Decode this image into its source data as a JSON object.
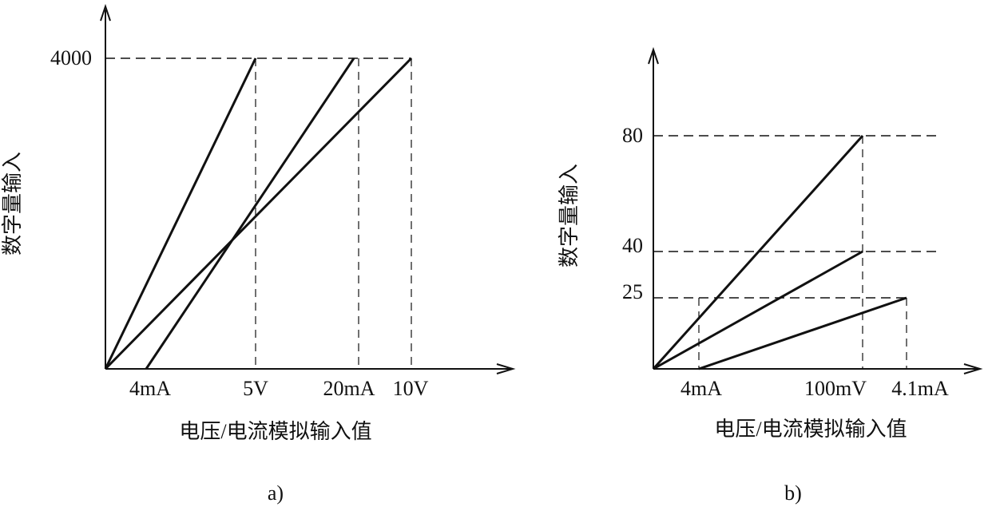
{
  "panels": [
    {
      "caption": "a)",
      "y_label": "数字量输入",
      "x_label": "电压/电流模拟输入值",
      "y_ticks": [
        "4000"
      ],
      "x_ticks": [
        "4mA",
        "5V",
        "20mA",
        "10V"
      ]
    },
    {
      "caption": "b)",
      "y_label": "数字量输入",
      "x_label": "电压/电流模拟输入值",
      "y_ticks": [
        "80",
        "40",
        "25"
      ],
      "x_ticks": [
        "4mA",
        "100mV",
        "4.1mA"
      ]
    }
  ]
}
